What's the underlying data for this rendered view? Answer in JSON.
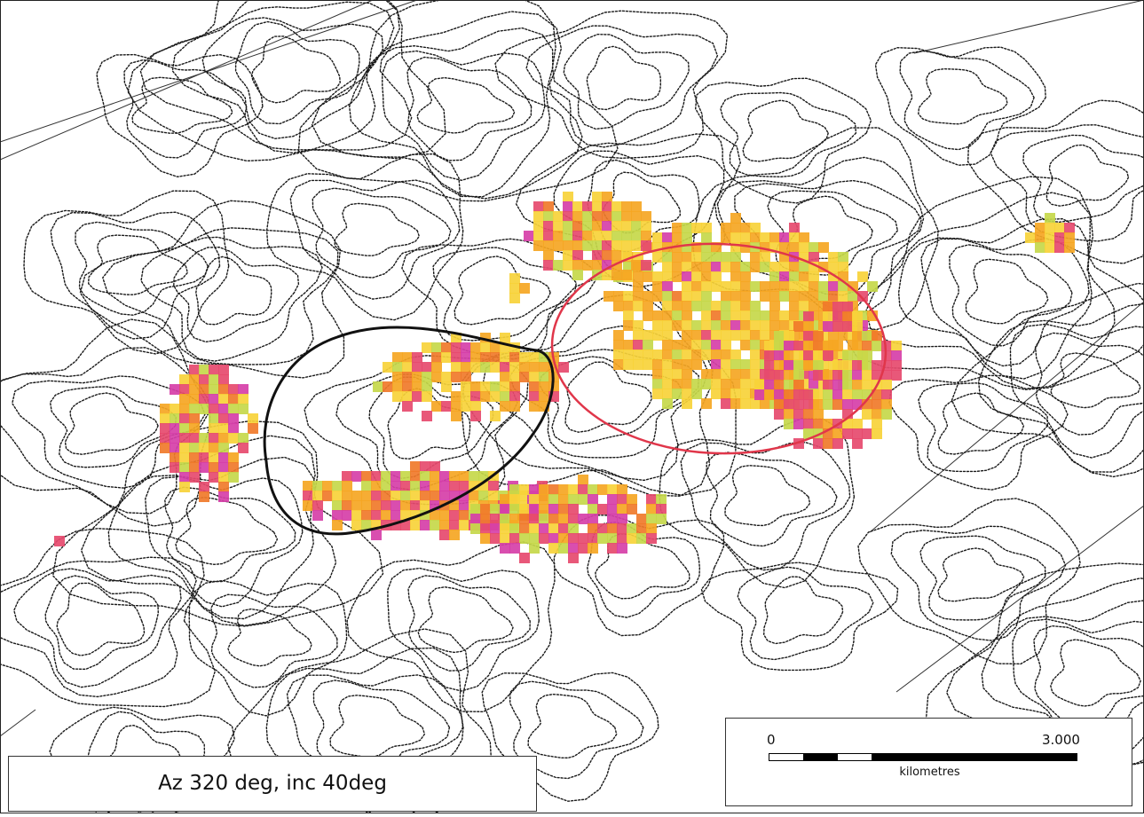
{
  "view_label": {
    "text": "Az 320 deg, inc 40deg"
  },
  "scale_bar": {
    "start": "0",
    "end": "3.000",
    "units": "kilometres"
  },
  "overlays": {
    "black_outline": {
      "color": "#111111",
      "description": "black outlined zone"
    },
    "red_outline": {
      "color": "#e0364a",
      "description": "red outlined zone"
    }
  },
  "anomaly_colors": [
    "#f7d23a",
    "#f5a623",
    "#f07a2a",
    "#e64a6e",
    "#d63fa8",
    "#c6d84a"
  ],
  "contour_color": "#1a1a1a"
}
